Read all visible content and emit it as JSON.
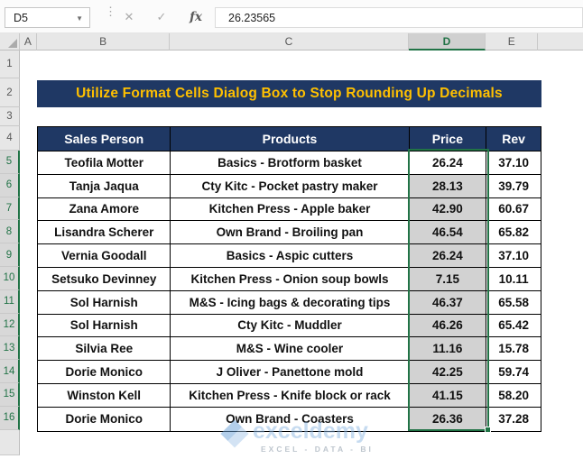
{
  "formula_bar": {
    "name_box": "D5",
    "value": "26.23565",
    "icons": {
      "cancel": "✕",
      "enter": "✓",
      "fx": "fx",
      "dropdown": "▼",
      "handle": "⋮"
    }
  },
  "sheet": {
    "columns": [
      {
        "label": "A",
        "selected": false
      },
      {
        "label": "B",
        "selected": false
      },
      {
        "label": "C",
        "selected": false
      },
      {
        "label": "D",
        "selected": true
      },
      {
        "label": "E",
        "selected": false
      }
    ],
    "row_numbers": [
      {
        "n": "1",
        "selected": false
      },
      {
        "n": "2",
        "selected": false
      },
      {
        "n": "3",
        "selected": false
      },
      {
        "n": "4",
        "selected": false
      },
      {
        "n": "5",
        "selected": true
      },
      {
        "n": "6",
        "selected": true
      },
      {
        "n": "7",
        "selected": true
      },
      {
        "n": "8",
        "selected": true
      },
      {
        "n": "9",
        "selected": true
      },
      {
        "n": "10",
        "selected": true
      },
      {
        "n": "11",
        "selected": true
      },
      {
        "n": "12",
        "selected": true
      },
      {
        "n": "13",
        "selected": true
      },
      {
        "n": "14",
        "selected": true
      },
      {
        "n": "15",
        "selected": true
      },
      {
        "n": "16",
        "selected": true
      }
    ]
  },
  "title_banner": "Utilize Format Cells Dialog Box to Stop Rounding Up Decimals",
  "table": {
    "headers": [
      "Sales Person",
      "Products",
      "Price",
      "Rev"
    ],
    "rows": [
      {
        "person": "Teofila Motter",
        "product": "Basics - Brotform basket",
        "price": "26.24",
        "rev": "37.10"
      },
      {
        "person": "Tanja Jaqua",
        "product": "Cty Kitc - Pocket pastry maker",
        "price": "28.13",
        "rev": "39.79"
      },
      {
        "person": "Zana Amore",
        "product": "Kitchen Press - Apple baker",
        "price": "42.90",
        "rev": "60.67"
      },
      {
        "person": "Lisandra Scherer",
        "product": "Own Brand - Broiling pan",
        "price": "46.54",
        "rev": "65.82"
      },
      {
        "person": "Vernia Goodall",
        "product": "Basics - Aspic cutters",
        "price": "26.24",
        "rev": "37.10"
      },
      {
        "person": "Setsuko Devinney",
        "product": "Kitchen Press - Onion soup bowls",
        "price": "7.15",
        "rev": "10.11"
      },
      {
        "person": "Sol Harnish",
        "product": "M&S - Icing bags & decorating tips",
        "price": "46.37",
        "rev": "65.58"
      },
      {
        "person": "Sol Harnish",
        "product": "Cty Kitc - Muddler",
        "price": "46.26",
        "rev": "65.42"
      },
      {
        "person": "Silvia Ree",
        "product": "M&S - Wine cooler",
        "price": "11.16",
        "rev": "15.78"
      },
      {
        "person": "Dorie Monico",
        "product": "J Oliver - Panettone mold",
        "price": "42.25",
        "rev": "59.74"
      },
      {
        "person": "Winston Kell",
        "product": "Kitchen Press - Knife block or rack",
        "price": "41.15",
        "rev": "58.20"
      },
      {
        "person": "Dorie Monico",
        "product": "Own Brand - Coasters",
        "price": "26.36",
        "rev": "37.28"
      }
    ]
  },
  "selection": {
    "active_cell": "D5",
    "selected_column": "D",
    "selected_rows_from": 5,
    "selected_rows_to": 16
  },
  "watermark": {
    "brand": "exceldemy",
    "tagline": "EXCEL - DATA - BI"
  },
  "colors": {
    "header_navy": "#1F3864",
    "banner_text_gold": "#FFC000",
    "selection_green": "#217346",
    "selected_cell_fill": "#D2D2D2"
  }
}
